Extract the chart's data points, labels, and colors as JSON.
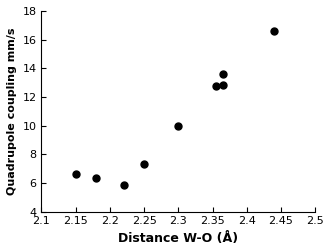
{
  "x": [
    2.15,
    2.18,
    2.22,
    2.25,
    2.3,
    2.355,
    2.365,
    2.365,
    2.44
  ],
  "y": [
    6.6,
    6.35,
    5.85,
    7.35,
    10.0,
    12.75,
    12.85,
    13.6,
    16.6
  ],
  "marker": "o",
  "marker_color": "black",
  "marker_size": 5,
  "xlabel": "Distance W-O (Å)",
  "ylabel": "Quadrupole coupling mm/s",
  "xlim": [
    2.1,
    2.5
  ],
  "ylim": [
    4,
    18
  ],
  "xticks": [
    2.1,
    2.15,
    2.2,
    2.25,
    2.3,
    2.35,
    2.4,
    2.45,
    2.5
  ],
  "xtick_labels": [
    "2.1",
    "2.15",
    "2.2",
    "2.25",
    "2.3",
    "2.35",
    "2.4",
    "2.45",
    "2.5"
  ],
  "yticks": [
    4,
    6,
    8,
    10,
    12,
    14,
    16,
    18
  ],
  "xlabel_fontsize": 9,
  "ylabel_fontsize": 8,
  "tick_fontsize": 8,
  "background_color": "#ffffff",
  "figwidth": 3.31,
  "figheight": 2.52,
  "dpi": 100
}
